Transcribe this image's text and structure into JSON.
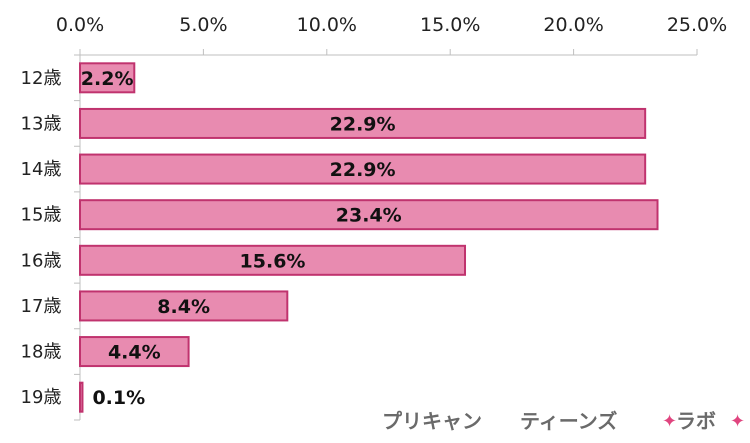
{
  "chart_data": {
    "type": "bar",
    "orientation": "horizontal",
    "categories": [
      "12歳",
      "13歳",
      "14歳",
      "15歳",
      "16歳",
      "17歳",
      "18歳",
      "19歳"
    ],
    "values": [
      2.2,
      22.9,
      22.9,
      23.4,
      15.6,
      8.4,
      4.4,
      0.1
    ],
    "data_labels": [
      "2.2%",
      "22.9%",
      "22.9%",
      "23.4%",
      "15.6%",
      "8.4%",
      "4.4%",
      "0.1%"
    ],
    "xlim": [
      0,
      25
    ],
    "x_ticks": [
      0,
      5,
      10,
      15,
      20,
      25
    ],
    "x_tick_labels": [
      "0.0%",
      "5.0%",
      "10.0%",
      "15.0%",
      "20.0%",
      "25.0%"
    ],
    "x_axis_position": "top",
    "grid": false,
    "legend": "none",
    "title": "",
    "xlabel": "",
    "ylabel": "",
    "colors": {
      "bar_fill": "#e88bb0",
      "bar_border": "#c0336e",
      "axis": "#bfbfbf"
    }
  },
  "watermark": {
    "text_1": "プリキャン",
    "text_2": "ティーンズ",
    "star": "✦",
    "text_3": "ラボ",
    "star_color": "#e0457f"
  }
}
